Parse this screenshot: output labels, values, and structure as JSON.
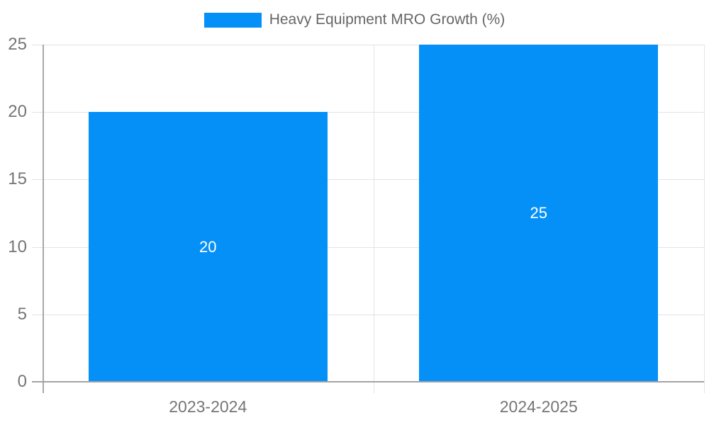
{
  "legend": {
    "label": "Heavy Equipment MRO Growth (%)"
  },
  "chart_data": {
    "type": "bar",
    "title": "Heavy Equipment MRO Growth (%)",
    "series_name": "Heavy Equipment MRO Growth (%)",
    "categories": [
      "2023-2024",
      "2024-2025"
    ],
    "values": [
      20,
      25
    ],
    "data_labels": [
      "20",
      "25"
    ],
    "xlabel": "",
    "ylabel": "",
    "ylim": [
      0,
      25
    ],
    "yticks": [
      0,
      5,
      10,
      15,
      20,
      25
    ],
    "grid": true,
    "legend_position": "top",
    "colors": {
      "bar": "#0590f8",
      "grid": "#e3e3e3",
      "axis": "#a8a8a8",
      "zero_line": "#a3a3a3",
      "tick_text": "#757575",
      "legend_text": "#666666",
      "bar_label_text": "#ffffff",
      "background": "#ffffff"
    }
  }
}
